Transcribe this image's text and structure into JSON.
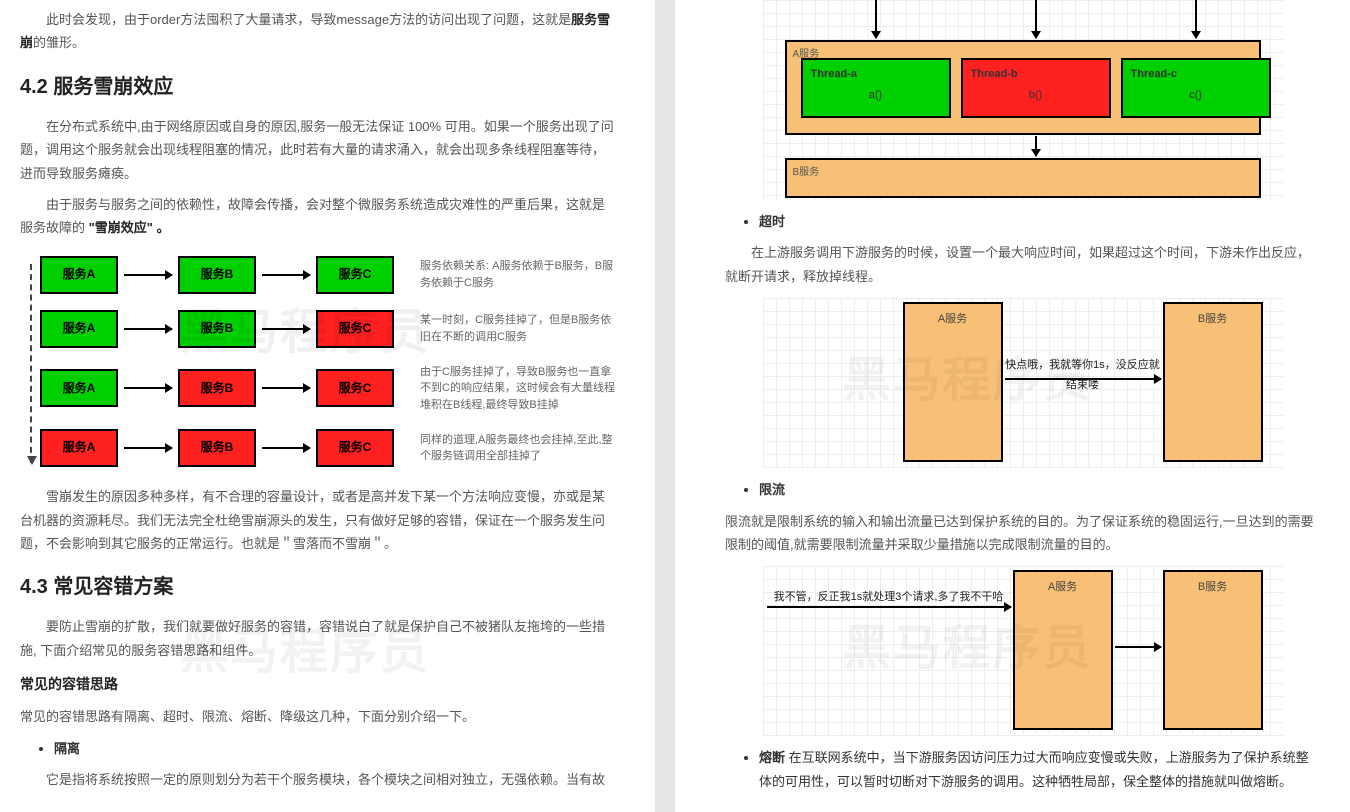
{
  "left": {
    "para0a": "此时会发现，由于order方法囤积了大量请求，导致message方法的访问出现了问题，这就是",
    "para0b": "服务雪崩",
    "para0c": "的雏形。",
    "h1": "4.2 服务雪崩效应",
    "para1": "在分布式系统中,由于网络原因或自身的原因,服务一般无法保证 100% 可用。如果一个服务出现了问题，调用这个服务就会出现线程阻塞的情况，此时若有大量的请求涌入，就会出现多条线程阻塞等待，进而导致服务瘫痪。",
    "para2a": "由于服务与服务之间的依赖性，故障会传播，会对整个微服务系统造成灾难性的严重后果，这就是服务故障的 ",
    "para2b": "\"雪崩效应\" 。",
    "rows": [
      {
        "boxes": [
          {
            "t": "服务A",
            "c": "green"
          },
          {
            "t": "服务B",
            "c": "green"
          },
          {
            "t": "服务C",
            "c": "green"
          }
        ],
        "label": "服务依赖关系:\nA服务依赖于B服务，B服务依赖于C服务"
      },
      {
        "boxes": [
          {
            "t": "服务A",
            "c": "green"
          },
          {
            "t": "服务B",
            "c": "green"
          },
          {
            "t": "服务C",
            "c": "red"
          }
        ],
        "label": "某一时刻，C服务挂掉了，但是B服务依旧在不断的调用C服务"
      },
      {
        "boxes": [
          {
            "t": "服务A",
            "c": "green"
          },
          {
            "t": "服务B",
            "c": "red"
          },
          {
            "t": "服务C",
            "c": "red"
          }
        ],
        "label": "由于C服务挂掉了，导致B服务也一直拿不到C的响应结果，这时候会有大量线程堆积在B线程,最终导致B挂掉"
      },
      {
        "boxes": [
          {
            "t": "服务A",
            "c": "red"
          },
          {
            "t": "服务B",
            "c": "red"
          },
          {
            "t": "服务C",
            "c": "red"
          }
        ],
        "label": "同样的道理,A服务最终也会挂掉,至此,整个服务链调用全部挂掉了"
      }
    ],
    "para3": "雪崩发生的原因多种多样，有不合理的容量设计，或者是高并发下某一个方法响应变慢，亦或是某台机器的资源耗尽。我们无法完全杜绝雪崩源头的发生，只有做好足够的容错，保证在一个服务发生问题，不会影响到其它服务的正常运行。也就是＂雪落而不雪崩＂。",
    "h2": "4.3 常见容错方案",
    "para4": "要防止雪崩的扩散，我们就要做好服务的容错，容错说白了就是保护自己不被猪队友拖垮的一些措施, 下面介绍常见的服务容错思路和组件。",
    "sub1": "常见的容错思路",
    "para5": "常见的容错思路有隔离、超时、限流、熔断、降级这几种，下面分别介绍一下。",
    "bul1": "隔离",
    "para6": "它是指将系统按照一定的原则划分为若干个服务模块，各个模块之间相对独立，无强依赖。当有故"
  },
  "right": {
    "thread": {
      "a_lbl": "A服务",
      "b_lbl": "B服务",
      "boxes": [
        {
          "t": "Thread-a",
          "fn": "a()"
        },
        {
          "t": "Thread-b",
          "fn": "b()"
        },
        {
          "t": "Thread-c",
          "fn": "c()"
        }
      ]
    },
    "bul2": "超时",
    "para7": "在上游服务调用下游服务的时候，设置一个最大响应时间，如果超过这个时间，下游未作出反应，就断开请求，释放掉线程。",
    "diag_timeout": {
      "a": "A服务",
      "b": "B服务",
      "msg": "快点哦，我就等你1s，没反应就结束喽"
    },
    "bul3": "限流",
    "para8": "限流就是限制系统的输入和输出流量已达到保护系统的目的。为了保证系统的稳固运行,一旦达到的需要限制的阈值,就需要限制流量并采取少量措施以完成限制流量的目的。",
    "diag_limit": {
      "a": "A服务",
      "b": "B服务",
      "msg": "我不管，反正我1s就处理3个请求,多了我不干哈"
    },
    "bul4": "熔断",
    "bul4_desc": "在互联网系统中，当下游服务因访问压力过大而响应变慢或失败，上游服务为了保护系统整体的可用性，可以暂时切断对下游服务的调用。这种牺牲局部，保全整体的措施就叫做熔断。"
  },
  "wm": "黑马程序员"
}
